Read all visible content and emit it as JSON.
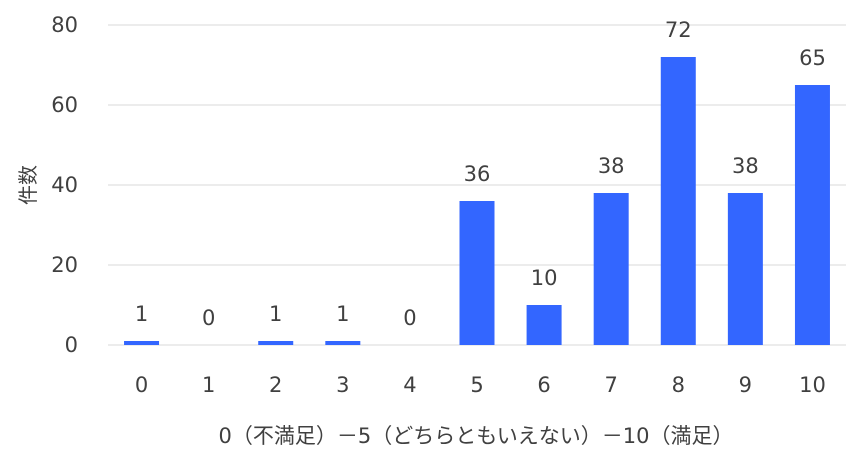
{
  "chart_data": {
    "type": "bar",
    "title": "",
    "xlabel": "0（不満足）－5（どちらともいえない）－10（満足）",
    "ylabel": "件数",
    "categories": [
      "0",
      "1",
      "2",
      "3",
      "4",
      "5",
      "6",
      "7",
      "8",
      "9",
      "10"
    ],
    "values": [
      1,
      0,
      1,
      1,
      0,
      36,
      10,
      38,
      72,
      38,
      65
    ],
    "ylim": [
      0,
      80
    ],
    "yticks": [
      "0",
      "20",
      "40",
      "60",
      "80"
    ],
    "grid": true,
    "legend": false,
    "bar_color": "#3366ff",
    "grid_color": "#d9d9d9",
    "text_color": "#404040"
  }
}
